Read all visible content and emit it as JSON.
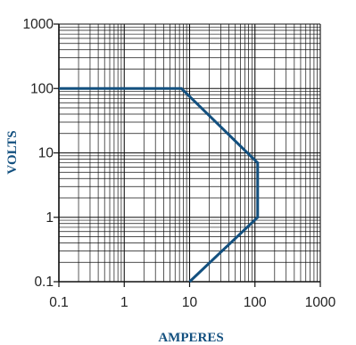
{
  "chart_data": {
    "type": "line",
    "xscale": "log",
    "yscale": "log",
    "xlim": [
      0.1,
      1000
    ],
    "ylim": [
      0.1,
      1000
    ],
    "grid": true,
    "xlabel": "AMPERES",
    "ylabel": "VOLTS",
    "x_ticks": [
      "0.1",
      "1",
      "10",
      "100",
      "1000"
    ],
    "y_ticks": [
      "0.1",
      "1",
      "10",
      "100",
      "1000"
    ],
    "series": [
      {
        "x": [
          0.1,
          7.5,
          110,
          110,
          10
        ],
        "y": [
          100,
          100,
          7,
          1,
          0.1
        ]
      }
    ],
    "colors": {
      "line": "#13507f",
      "grid": "#111111",
      "axis_title": "#13507f",
      "tick_text": "#222222"
    }
  }
}
